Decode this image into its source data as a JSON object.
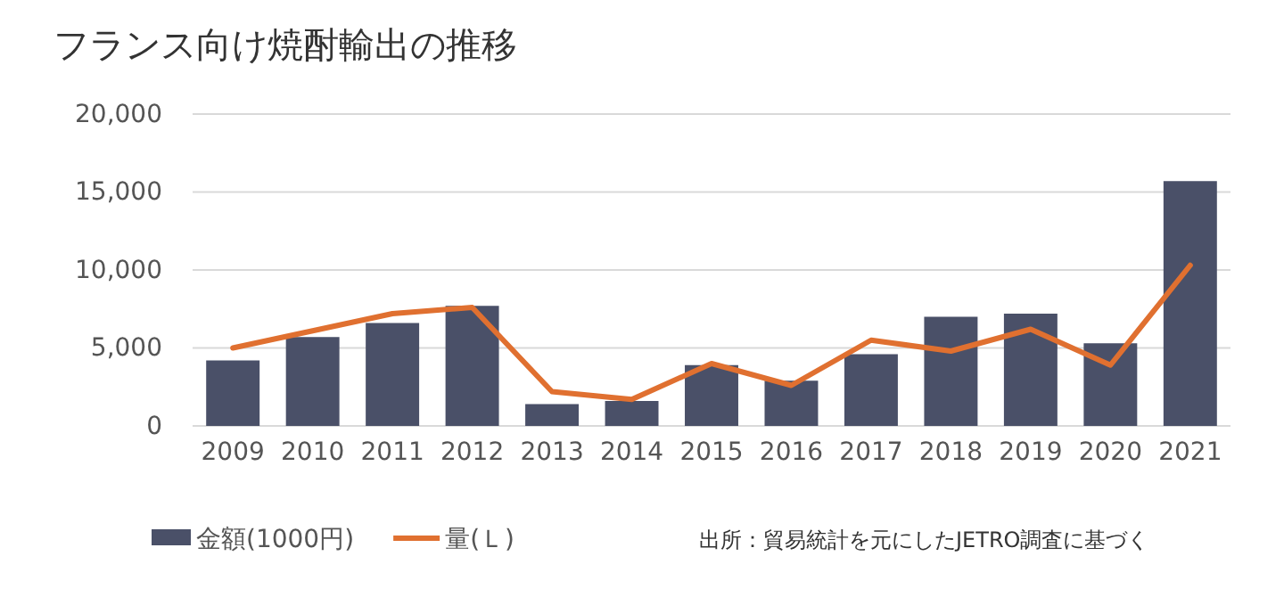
{
  "chart_data": {
    "type": "bar",
    "title": "フランス向け焼酎輸出の推移",
    "categories": [
      "2009",
      "2010",
      "2011",
      "2012",
      "2013",
      "2014",
      "2015",
      "2016",
      "2017",
      "2018",
      "2019",
      "2020",
      "2021"
    ],
    "series": [
      {
        "name": "金額(1000円)",
        "color": "#4a5068",
        "values": [
          4200,
          5700,
          6600,
          7700,
          1400,
          1600,
          3900,
          2900,
          4600,
          7000,
          7200,
          5300,
          15700
        ]
      },
      {
        "name": "量(Ｌ)",
        "type": "line",
        "color": "#e07030",
        "values": [
          5000,
          6100,
          7200,
          7600,
          2200,
          1700,
          4000,
          2600,
          5500,
          4800,
          6200,
          3900,
          10300
        ]
      }
    ],
    "ylim": [
      0,
      20000
    ],
    "yticks": [
      {
        "value": 0,
        "label": "0"
      },
      {
        "value": 5000,
        "label": "5,000"
      },
      {
        "value": 10000,
        "label": "10,000"
      },
      {
        "value": 15000,
        "label": "15,000"
      },
      {
        "value": 20000,
        "label": "20,000"
      }
    ],
    "grid": "y",
    "legend": "bottom",
    "marker": "none",
    "annotations": [
      "出所：貿易統計を元にしたJETRO調査に基づく"
    ]
  }
}
